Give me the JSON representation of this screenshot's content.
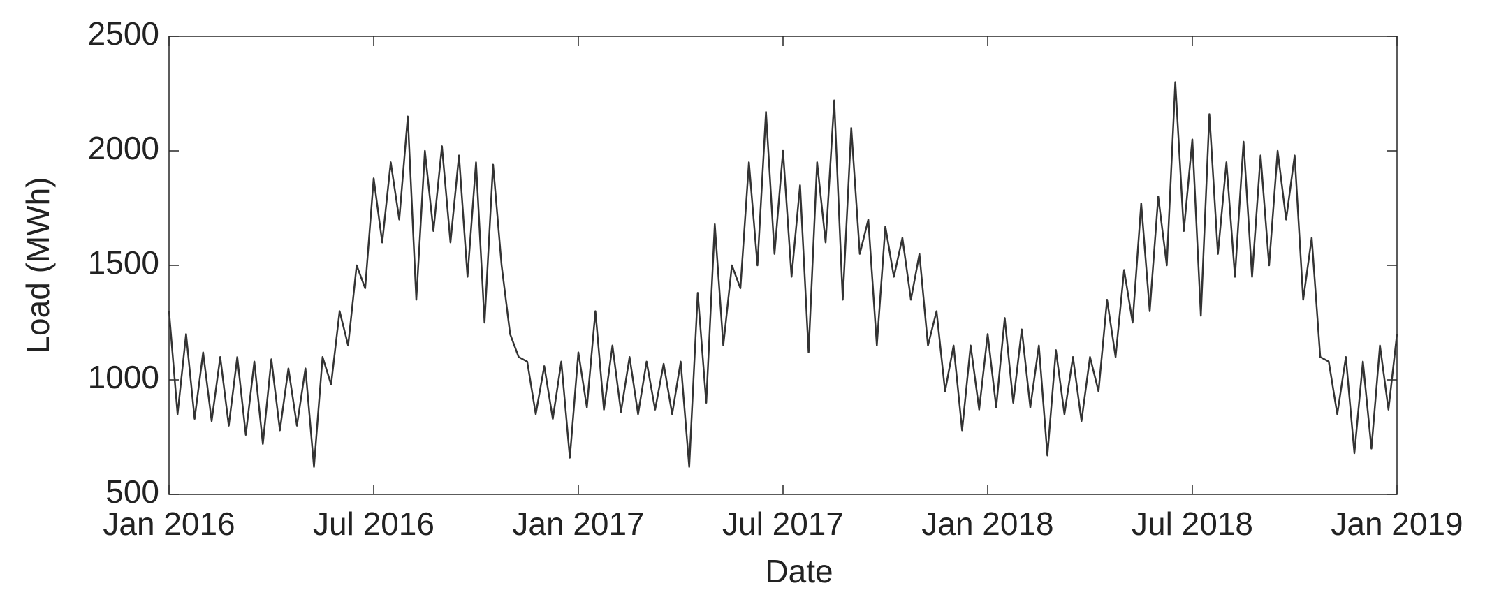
{
  "chart_data": {
    "type": "line",
    "xlabel": "Date",
    "ylabel": "Load (MWh)",
    "color": "#333333",
    "xlim": [
      0,
      36
    ],
    "ylim": [
      500,
      2500
    ],
    "xticks": [
      {
        "value": 0,
        "label": "Jan 2016"
      },
      {
        "value": 6,
        "label": "Jul 2016"
      },
      {
        "value": 12,
        "label": "Jan 2017"
      },
      {
        "value": 18,
        "label": "Jul 2017"
      },
      {
        "value": 24,
        "label": "Jan 2018"
      },
      {
        "value": 30,
        "label": "Jul 2018"
      },
      {
        "value": 36,
        "label": "Jan 2019"
      }
    ],
    "yticks": [
      500,
      1000,
      1500,
      2000,
      2500
    ],
    "x": [
      0,
      0.25,
      0.5,
      0.75,
      1,
      1.25,
      1.5,
      1.75,
      2,
      2.25,
      2.5,
      2.75,
      3,
      3.25,
      3.5,
      3.75,
      4,
      4.25,
      4.5,
      4.75,
      5,
      5.25,
      5.5,
      5.75,
      6,
      6.25,
      6.5,
      6.75,
      7,
      7.25,
      7.5,
      7.75,
      8,
      8.25,
      8.5,
      8.75,
      9,
      9.25,
      9.5,
      9.75,
      10,
      10.25,
      10.5,
      10.75,
      11,
      11.25,
      11.5,
      11.75,
      12,
      12.25,
      12.5,
      12.75,
      13,
      13.25,
      13.5,
      13.75,
      14,
      14.25,
      14.5,
      14.75,
      15,
      15.25,
      15.5,
      15.75,
      16,
      16.25,
      16.5,
      16.75,
      17,
      17.25,
      17.5,
      17.75,
      18,
      18.25,
      18.5,
      18.75,
      19,
      19.25,
      19.5,
      19.75,
      20,
      20.25,
      20.5,
      20.75,
      21,
      21.25,
      21.5,
      21.75,
      22,
      22.25,
      22.5,
      22.75,
      23,
      23.25,
      23.5,
      23.75,
      24,
      24.25,
      24.5,
      24.75,
      25,
      25.25,
      25.5,
      25.75,
      26,
      26.25,
      26.5,
      26.75,
      27,
      27.25,
      27.5,
      27.75,
      28,
      28.25,
      28.5,
      28.75,
      29,
      29.25,
      29.5,
      29.75,
      30,
      30.25,
      30.5,
      30.75,
      31,
      31.25,
      31.5,
      31.75,
      32,
      32.25,
      32.5,
      32.75,
      33,
      33.25,
      33.5,
      33.75,
      34,
      34.25,
      34.5,
      34.75,
      35,
      35.25,
      35.5,
      35.75,
      36
    ],
    "values": [
      1300,
      850,
      1200,
      830,
      1120,
      820,
      1100,
      800,
      1100,
      760,
      1080,
      720,
      1090,
      780,
      1050,
      800,
      1050,
      620,
      1100,
      980,
      1300,
      1150,
      1500,
      1400,
      1880,
      1600,
      1950,
      1700,
      2150,
      1350,
      2000,
      1650,
      2020,
      1600,
      1980,
      1450,
      1950,
      1250,
      1940,
      1500,
      1200,
      1100,
      1080,
      850,
      1060,
      830,
      1080,
      660,
      1120,
      880,
      1300,
      870,
      1150,
      860,
      1100,
      850,
      1080,
      870,
      1070,
      850,
      1080,
      620,
      1380,
      900,
      1680,
      1150,
      1500,
      1400,
      1950,
      1500,
      2170,
      1550,
      2000,
      1450,
      1850,
      1120,
      1950,
      1600,
      2220,
      1350,
      2100,
      1550,
      1700,
      1150,
      1670,
      1450,
      1620,
      1350,
      1550,
      1150,
      1300,
      950,
      1150,
      780,
      1150,
      870,
      1200,
      880,
      1270,
      900,
      1220,
      880,
      1150,
      670,
      1130,
      850,
      1100,
      820,
      1100,
      950,
      1350,
      1100,
      1480,
      1250,
      1770,
      1300,
      1800,
      1500,
      2300,
      1650,
      2050,
      1280,
      2160,
      1550,
      1950,
      1450,
      2040,
      1450,
      1980,
      1500,
      2000,
      1700,
      1980,
      1350,
      1620,
      1100,
      1080,
      850,
      1100,
      680,
      1080,
      700,
      1150,
      870,
      1200
    ]
  }
}
